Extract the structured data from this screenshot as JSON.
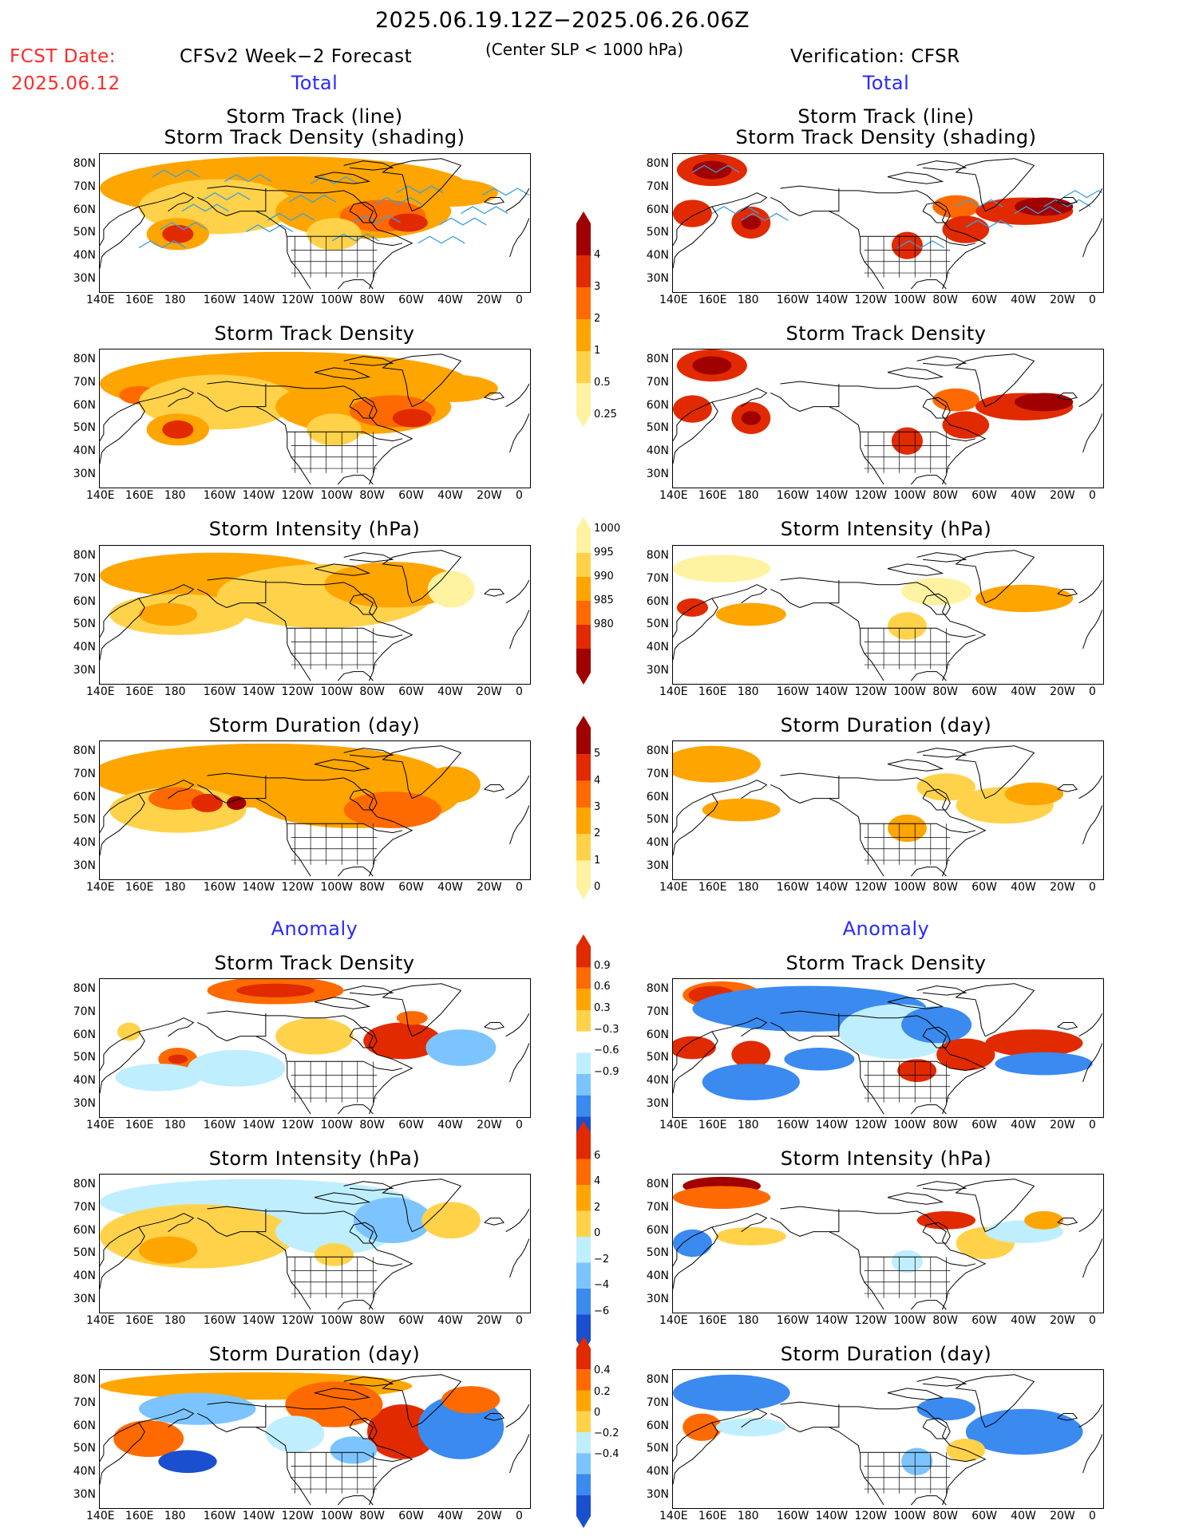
{
  "header": {
    "date_range": "2025.06.19.12Z−2025.06.26.06Z",
    "fcst_label": "FCST Date:",
    "fcst_date": "2025.06.12",
    "model_title": "CFSv2 Week−2 Forecast",
    "slp_note": "(Center SLP < 1000 hPa)",
    "verification": "Verification: CFSR",
    "left_total": "Total",
    "right_total": "Total",
    "left_anomaly": "Anomaly",
    "right_anomaly": "Anomaly"
  },
  "panel_titles": {
    "track_line": "Storm Track (line)",
    "track_density_shading": "Storm Track Density (shading)",
    "track_density": "Storm Track Density",
    "intensity": "Storm Intensity (hPa)",
    "duration": "Storm Duration (day)"
  },
  "axes": {
    "lat_labels": [
      "80N",
      "70N",
      "60N",
      "50N",
      "40N",
      "30N"
    ],
    "lon_labels": [
      "140E",
      "160E",
      "180",
      "160W",
      "140W",
      "120W",
      "100W",
      "80W",
      "60W",
      "40W",
      "20W",
      "0"
    ]
  },
  "colorbars": {
    "density": {
      "labels": [
        "4",
        "3",
        "2",
        "1",
        "0.5",
        "0.25"
      ],
      "colors": [
        "#a00000",
        "#e22a00",
        "#ff6a00",
        "#ffa500",
        "#ffd24a",
        "#fff2a0"
      ]
    },
    "intensity": {
      "labels": [
        "1000",
        "995",
        "990",
        "985",
        "980"
      ],
      "colors": [
        "#fff2a0",
        "#ffd24a",
        "#ffa500",
        "#ff6a00",
        "#e22a00",
        "#a00000"
      ]
    },
    "duration": {
      "labels": [
        "5",
        "4",
        "3",
        "2",
        "1",
        "0"
      ],
      "colors": [
        "#a00000",
        "#e22a00",
        "#ff6a00",
        "#ffa500",
        "#ffd24a",
        "#fff2a0"
      ]
    },
    "anom_density": {
      "labels": [
        "0.9",
        "0.6",
        "0.3",
        "−0.3",
        "−0.6",
        "−0.9"
      ],
      "colors": [
        "#e22a00",
        "#ff6a00",
        "#ffa500",
        "#ffd24a",
        "#ffffff",
        "#bfeeff",
        "#7cc4ff",
        "#3a8af0",
        "#1a4fd0"
      ]
    },
    "anom_intensity": {
      "labels": [
        "6",
        "4",
        "2",
        "0",
        "−2",
        "−4",
        "−6"
      ],
      "colors": [
        "#e22a00",
        "#ff6a00",
        "#ffa500",
        "#ffd24a",
        "#bfeeff",
        "#7cc4ff",
        "#3a8af0",
        "#1a4fd0"
      ]
    },
    "anom_duration": {
      "labels": [
        "0.4",
        "0.2",
        "0",
        "−0.2",
        "−0.4"
      ],
      "colors": [
        "#e22a00",
        "#ff6a00",
        "#ffa500",
        "#ffd24a",
        "#bfeeff",
        "#7cc4ff",
        "#3a8af0",
        "#1a4fd0"
      ]
    }
  }
}
